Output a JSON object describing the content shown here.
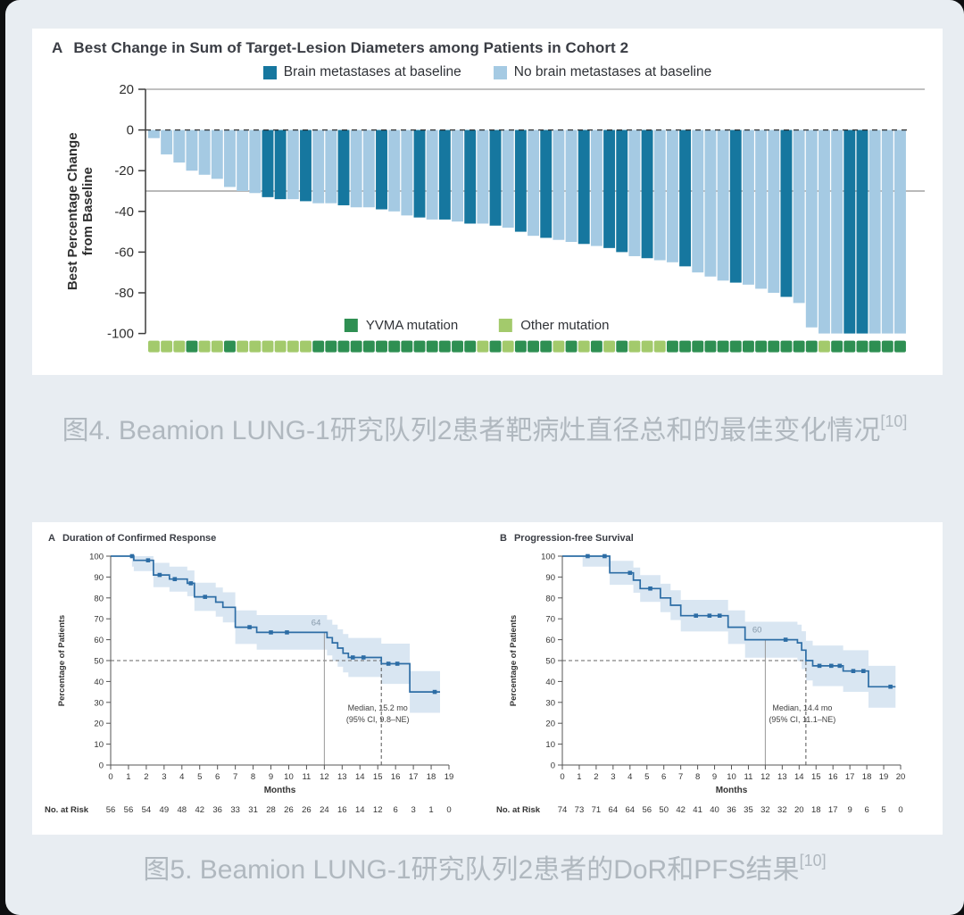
{
  "page": {
    "bg": "#e8edf2",
    "outer_bg": "#0e0f11",
    "card_bg": "#ffffff",
    "caption_color": "#b0b8bf"
  },
  "fig4": {
    "panel_label": "A",
    "title": "Best Change in Sum of Target-Lesion Diameters among Patients in Cohort 2",
    "legend": [
      {
        "label": "Brain metastases at baseline",
        "color": "#16779f"
      },
      {
        "label": "No brain metastases at baseline",
        "color": "#a5cae3"
      }
    ],
    "mutation_legend": [
      {
        "label": "YVMA mutation",
        "color": "#2e8f52"
      },
      {
        "label": "Other mutation",
        "color": "#a3ca6c"
      }
    ],
    "chart_data": {
      "type": "bar",
      "title": "Best Change in Sum of Target-Lesion Diameters among Patients in Cohort 2",
      "ylabel_lines": [
        "Best Percentage Change",
        "from Baseline"
      ],
      "yticks": [
        20,
        0,
        -20,
        -40,
        -60,
        -80,
        -100
      ],
      "ylim": [
        -100,
        20
      ],
      "reference_line_dashed": 0,
      "reference_line_solid": -30,
      "colors": {
        "brain_met": "#16779f",
        "no_brain_met": "#a5cae3",
        "yvma": "#2e8f52",
        "other": "#a3ca6c"
      },
      "values": [
        -4,
        -12,
        -16,
        -20,
        -22,
        -24,
        -28,
        -30,
        -31,
        -33,
        -34,
        -34,
        -35,
        -36,
        -36,
        -37,
        -38,
        -38,
        -39,
        -40,
        -42,
        -43,
        -44,
        -44,
        -45,
        -46,
        -46,
        -47,
        -48,
        -50,
        -52,
        -53,
        -54,
        -55,
        -56,
        -57,
        -58,
        -60,
        -62,
        -63,
        -64,
        -65,
        -67,
        -70,
        -72,
        -74,
        -75,
        -76,
        -78,
        -80,
        -82,
        -85,
        -97,
        -100,
        -100,
        -100,
        -100,
        -100,
        -100,
        -100
      ],
      "brain_metastases": [
        0,
        0,
        0,
        0,
        0,
        0,
        0,
        0,
        0,
        1,
        1,
        0,
        1,
        0,
        0,
        1,
        0,
        0,
        1,
        0,
        0,
        1,
        0,
        1,
        0,
        1,
        0,
        1,
        0,
        1,
        0,
        1,
        0,
        0,
        1,
        0,
        1,
        1,
        0,
        1,
        0,
        0,
        1,
        0,
        0,
        0,
        1,
        0,
        0,
        0,
        1,
        0,
        0,
        0,
        0,
        1,
        1,
        0,
        0,
        0
      ],
      "yvma_mutation": [
        0,
        0,
        0,
        1,
        0,
        0,
        1,
        0,
        0,
        0,
        0,
        0,
        0,
        1,
        1,
        1,
        1,
        1,
        1,
        1,
        1,
        1,
        1,
        1,
        1,
        1,
        0,
        1,
        0,
        1,
        1,
        1,
        0,
        1,
        0,
        1,
        0,
        1,
        0,
        0,
        0,
        1,
        1,
        1,
        1,
        1,
        1,
        1,
        1,
        1,
        1,
        1,
        1,
        0,
        1,
        1,
        1,
        1,
        1,
        1
      ]
    }
  },
  "captions": {
    "fig4": {
      "text": "图4. Beamion LUNG-1研究队列2患者靶病灶直径总和的最佳变化情况",
      "sup": "[10]"
    },
    "fig5": {
      "text": "图5. Beamion LUNG-1研究队列2患者的DoR和PFS结果",
      "sup": "[10]"
    }
  },
  "fig5": {
    "dor": {
      "panel_label": "A",
      "title": "Duration of Confirmed Response",
      "chart_data": {
        "type": "line",
        "ylabel": "Percentage of Patients",
        "xlabel": "Months",
        "xlim": [
          0,
          19
        ],
        "ylim": [
          0,
          100
        ],
        "yticks": [
          0,
          10,
          20,
          30,
          40,
          50,
          60,
          70,
          80,
          90,
          100
        ],
        "xticks": [
          0,
          1,
          2,
          3,
          4,
          5,
          6,
          7,
          8,
          9,
          10,
          11,
          12,
          13,
          14,
          15,
          16,
          17,
          18,
          19
        ],
        "line_color": "#2d6da5",
        "band_color": "#cfe0ef",
        "steps": {
          "x": [
            0,
            1.3,
            2.4,
            3.3,
            4.3,
            4.7,
            5.9,
            6.3,
            7.0,
            8.2,
            12.15,
            12.45,
            12.75,
            13.05,
            13.35,
            15.2,
            16.8
          ],
          "y": [
            100,
            98,
            91,
            89,
            87,
            80.5,
            78,
            75.5,
            66,
            63.5,
            61,
            58.5,
            56,
            53.5,
            51.5,
            48.5,
            35
          ],
          "end_x": 18.5
        },
        "censor_x": [
          1.2,
          2.1,
          2.75,
          3.6,
          4.5,
          5.3,
          7.8,
          9.0,
          9.9,
          13.6,
          14.2,
          15.6,
          16.1,
          18.2
        ],
        "landmark": {
          "x": 12,
          "label": "64"
        },
        "fifty_pct_line": 50,
        "median": {
          "x": 15.2,
          "line1": "Median, 15.2 mo",
          "line2": "(95% CI, 9.8–NE)"
        },
        "no_at_risk": {
          "label": "No. at Risk",
          "values": [
            56,
            56,
            54,
            49,
            48,
            42,
            36,
            33,
            31,
            28,
            26,
            26,
            24,
            16,
            14,
            12,
            6,
            3,
            1,
            0
          ]
        }
      }
    },
    "pfs": {
      "panel_label": "B",
      "title": "Progression-free Survival",
      "chart_data": {
        "type": "line",
        "ylabel": "Percentage of Patients",
        "xlabel": "Months",
        "xlim": [
          0,
          20
        ],
        "ylim": [
          0,
          100
        ],
        "yticks": [
          0,
          10,
          20,
          30,
          40,
          50,
          60,
          70,
          80,
          90,
          100
        ],
        "xticks": [
          0,
          1,
          2,
          3,
          4,
          5,
          6,
          7,
          8,
          9,
          10,
          11,
          12,
          13,
          14,
          15,
          16,
          17,
          18,
          19,
          20
        ],
        "line_color": "#2d6da5",
        "band_color": "#cfe0ef",
        "steps": {
          "x": [
            0,
            2.8,
            4.2,
            4.6,
            5.8,
            6.4,
            7.0,
            9.8,
            10.8,
            13.9,
            14.15,
            14.4,
            14.8,
            16.6,
            18.1
          ],
          "y": [
            100,
            92,
            88.5,
            84.5,
            80,
            76.5,
            71.5,
            66,
            60,
            58.5,
            55,
            50,
            47.5,
            45,
            37.5
          ],
          "end_x": 19.7
        },
        "censor_x": [
          1.5,
          2.5,
          4.0,
          5.2,
          7.9,
          8.7,
          9.3,
          13.2,
          15.2,
          15.9,
          16.4,
          17.2,
          17.8,
          19.4
        ],
        "landmark": {
          "x": 12,
          "label": "60"
        },
        "fifty_pct_line": 50,
        "median": {
          "x": 14.4,
          "line1": "Median, 14.4 mo",
          "line2": "(95% CI, 11.1–NE)"
        },
        "no_at_risk": {
          "label": "No. at Risk",
          "values": [
            74,
            73,
            71,
            64,
            64,
            56,
            50,
            42,
            41,
            40,
            36,
            35,
            32,
            32,
            20,
            18,
            17,
            9,
            6,
            5,
            0
          ]
        }
      }
    }
  }
}
